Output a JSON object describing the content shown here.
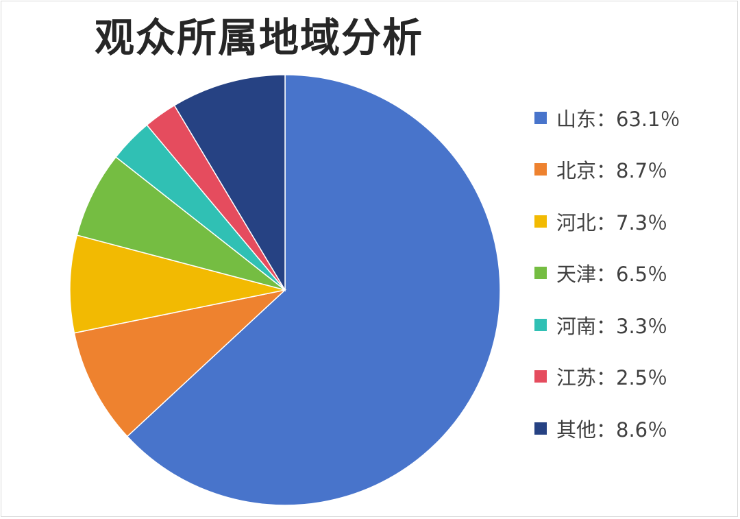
{
  "chart_data": {
    "type": "pie",
    "title": "观众所属地域分析",
    "legend_position": "right",
    "slices": [
      {
        "label": "山东：63.1％",
        "value": 63.1,
        "color": "#4874cb"
      },
      {
        "label": "北京：8.7％",
        "value": 8.7,
        "color": "#ee822f"
      },
      {
        "label": "河北：7.3％",
        "value": 7.3,
        "color": "#f2ba02"
      },
      {
        "label": "天津：6.5％",
        "value": 6.5,
        "color": "#75bd42"
      },
      {
        "label": "河南：3.3％",
        "value": 3.3,
        "color": "#30c0b4"
      },
      {
        "label": "江苏：2.5％",
        "value": 2.5,
        "color": "#e54c5e"
      },
      {
        "label": "其他：8.6％",
        "value": 8.6,
        "color": "#264283"
      }
    ]
  }
}
